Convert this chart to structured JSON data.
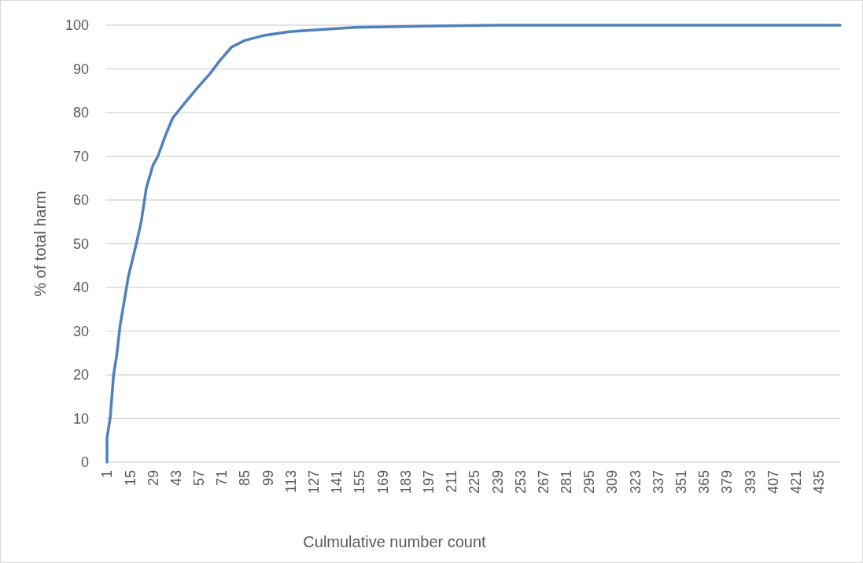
{
  "chart_data": {
    "type": "line",
    "xlabel": "Culmulative number count",
    "ylabel": "% of total harm",
    "x": [
      1,
      1,
      3,
      5,
      7,
      9,
      14,
      19,
      22,
      25,
      29,
      32,
      37,
      41,
      48,
      56,
      64,
      70,
      77,
      85,
      96,
      112,
      128,
      152,
      180,
      200,
      240,
      300,
      360,
      448
    ],
    "series": [
      {
        "color": "#4f81bd",
        "values": [
          0,
          5.5,
          10.3,
          19.9,
          24.7,
          31.3,
          42.4,
          50.2,
          55.3,
          62.8,
          67.9,
          70,
          75.1,
          78.7,
          82,
          85.6,
          89,
          92,
          95,
          96.5,
          97.6,
          98.5,
          98.9,
          99.5,
          99.7,
          99.8,
          100,
          100,
          100,
          100
        ]
      }
    ],
    "xlim": [
      1,
      448
    ],
    "xticks": [
      1,
      15,
      29,
      43,
      57,
      71,
      85,
      99,
      113,
      127,
      141,
      155,
      169,
      183,
      197,
      211,
      225,
      239,
      253,
      267,
      281,
      295,
      309,
      323,
      337,
      351,
      365,
      379,
      393,
      407,
      421,
      435
    ],
    "ylim": [
      0,
      100
    ],
    "yticks": [
      0,
      10,
      20,
      30,
      40,
      50,
      60,
      70,
      80,
      90,
      100
    ],
    "grid": "y",
    "marker": "none",
    "line_style": "solid"
  }
}
